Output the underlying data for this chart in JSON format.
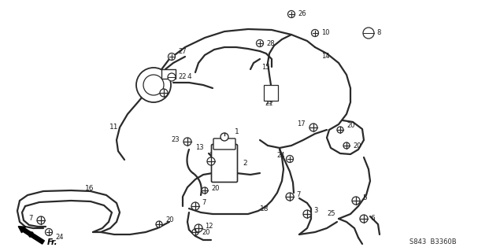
{
  "bg_color": "#ffffff",
  "line_color": "#2a2a2a",
  "label_color": "#1a1a1a",
  "bottom_text": "S843  B3360B",
  "fr_label": "Fr.",
  "fig_width": 6.4,
  "fig_height": 3.19,
  "dpi": 100
}
